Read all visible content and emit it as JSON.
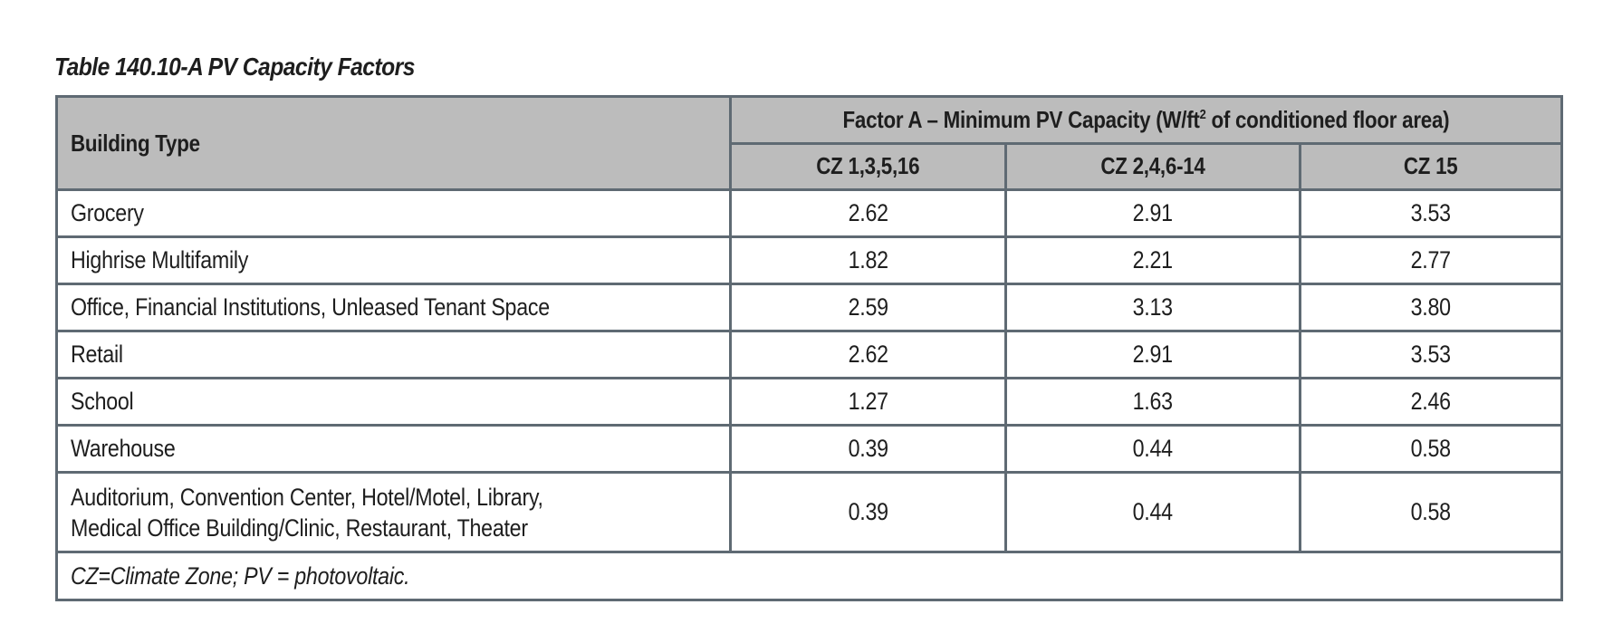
{
  "title": "Table 140.10-A PV Capacity Factors",
  "table": {
    "building_type_header": "Building Type",
    "factor_header_pre": "Factor A – Minimum PV Capacity (W/ft",
    "factor_header_sup": "2",
    "factor_header_post": " of conditioned floor area)",
    "zone_headers": [
      "CZ 1,3,5,16",
      "CZ 2,4,6-14",
      "CZ 15"
    ],
    "rows": [
      {
        "building": "Grocery",
        "values": [
          "2.62",
          "2.91",
          "3.53"
        ]
      },
      {
        "building": "Highrise Multifamily",
        "values": [
          "1.82",
          "2.21",
          "2.77"
        ]
      },
      {
        "building": "Office, Financial Institutions, Unleased Tenant Space",
        "values": [
          "2.59",
          "3.13",
          "3.80"
        ]
      },
      {
        "building": "Retail",
        "values": [
          "2.62",
          "2.91",
          "3.53"
        ]
      },
      {
        "building": "School",
        "values": [
          "1.27",
          "1.63",
          "2.46"
        ]
      },
      {
        "building": "Warehouse",
        "values": [
          "0.39",
          "0.44",
          "0.58"
        ]
      },
      {
        "building_line1": "Auditorium, Convention Center, Hotel/Motel, Library,",
        "building_line2": "Medical Office Building/Clinic, Restaurant, Theater",
        "values": [
          "0.39",
          "0.44",
          "0.58"
        ]
      }
    ],
    "footnote": "CZ=Climate Zone; PV = photovoltaic."
  }
}
